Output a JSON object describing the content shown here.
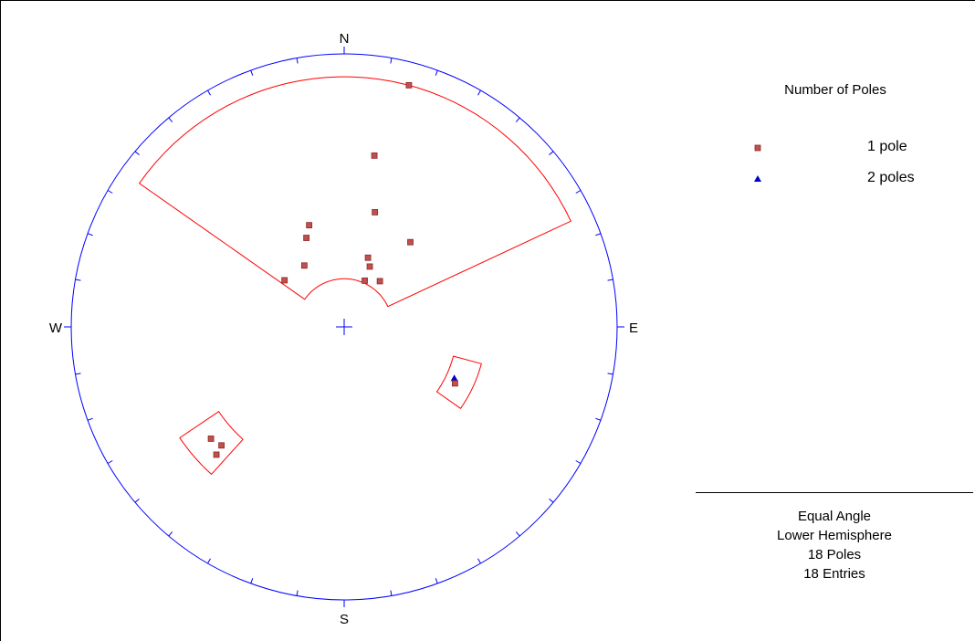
{
  "chart_data": {
    "type": "scatter",
    "projection": "Equal Angle",
    "hemisphere": "Lower Hemisphere",
    "directions": {
      "north": "N",
      "east": "E",
      "south": "S",
      "west": "W"
    },
    "legend": {
      "title": "Number of Poles",
      "entries": [
        {
          "label": "1 pole",
          "symbol": "square",
          "color": "#c0504d"
        },
        {
          "label": "2 poles",
          "symbol": "triangle",
          "color": "#0000cc"
        }
      ]
    },
    "poles": [
      {
        "trend": 15,
        "plunge": 5,
        "count": 1
      },
      {
        "trend": 10,
        "plunge": 25,
        "count": 1
      },
      {
        "trend": 341,
        "plunge": 47,
        "count": 1
      },
      {
        "trend": 15,
        "plunge": 43,
        "count": 1
      },
      {
        "trend": 337,
        "plunge": 51,
        "count": 1
      },
      {
        "trend": 38,
        "plunge": 47,
        "count": 1
      },
      {
        "trend": 327,
        "plunge": 60,
        "count": 1
      },
      {
        "trend": 19,
        "plunge": 60,
        "count": 1
      },
      {
        "trend": 23,
        "plunge": 63,
        "count": 1
      },
      {
        "trend": 308,
        "plunge": 59,
        "count": 1
      },
      {
        "trend": 24,
        "plunge": 69,
        "count": 1
      },
      {
        "trend": 38,
        "plunge": 66,
        "count": 1
      },
      {
        "trend": 115,
        "plunge": 42,
        "count": 2
      },
      {
        "trend": 117,
        "plunge": 41,
        "count": 1
      },
      {
        "trend": 230,
        "plunge": 25,
        "count": 1
      },
      {
        "trend": 226,
        "plunge": 26,
        "count": 1
      },
      {
        "trend": 225,
        "plunge": 23,
        "count": 1
      }
    ],
    "windows": [
      {
        "trend_from": 305,
        "trend_to": 65,
        "plunge_min": 5,
        "plunge_max": 70
      },
      {
        "trend_from": 105,
        "trend_to": 125,
        "plunge_min": 35,
        "plunge_max": 45
      },
      {
        "trend_from": 222,
        "trend_to": 236,
        "plunge_min": 18,
        "plunge_max": 32
      }
    ],
    "grid": false
  },
  "info": {
    "projection": "Equal Angle",
    "hemisphere": "Lower Hemisphere",
    "poles_count": "18 Poles",
    "entries_count": "18 Entries"
  }
}
